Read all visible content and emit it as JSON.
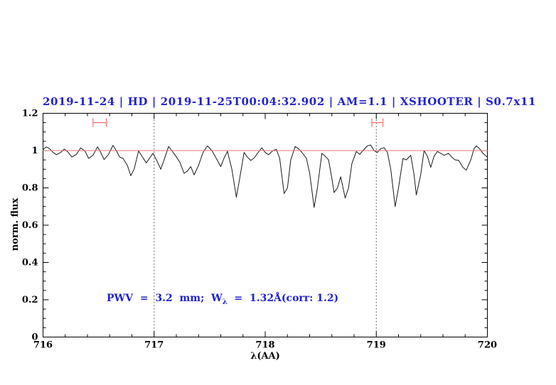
{
  "title": {
    "text": "2019-11-24 | HD | 2019-11-25T00:04:32.902 | AM=1.1 | XSHOOTER | S0.7x11",
    "color": "#2222cc"
  },
  "axes": {
    "xlabel": "λ(AA)",
    "ylabel": "norm. flux",
    "x_tick_labels": [
      "716",
      "717",
      "718",
      "719",
      "720"
    ],
    "y_tick_labels": [
      "0",
      "0.2",
      "0.4",
      "0.6",
      "0.8",
      "1",
      "1.2"
    ]
  },
  "annotation": {
    "prefix": "PWV  =  3.2  mm;  W",
    "sub": "λ",
    "suffix": "  =  1.32Å(corr: 1.2)",
    "color": "#2222cc"
  },
  "chart_data": {
    "type": "line",
    "title": "2019-11-24 | HD | 2019-11-25T00:04:32.902 | AM=1.1 | XSHOOTER | S0.7x11",
    "xlabel": "λ(AA)",
    "ylabel": "norm. flux",
    "xlim": [
      716,
      720
    ],
    "ylim": [
      0,
      1.2
    ],
    "x_major_ticks": [
      716,
      717,
      718,
      719,
      720
    ],
    "y_major_ticks": [
      0,
      0.2,
      0.4,
      0.6,
      0.8,
      1.0,
      1.2
    ],
    "x_minor_step": 0.2,
    "y_minor_step": 0.05,
    "grid": false,
    "frame_color": "#000000",
    "series": [
      {
        "name": "observed-telluric-spectrum",
        "color": "#1a1a1a",
        "x": [
          716.0,
          716.03,
          716.06,
          716.09,
          716.12,
          716.16,
          716.19,
          716.22,
          716.26,
          716.3,
          716.34,
          716.38,
          716.41,
          716.45,
          716.49,
          716.52,
          716.55,
          716.59,
          716.63,
          716.66,
          716.69,
          716.72,
          716.76,
          716.79,
          716.82,
          716.86,
          716.89,
          716.93,
          716.96,
          716.99,
          717.03,
          717.06,
          717.09,
          717.13,
          717.16,
          717.19,
          717.23,
          717.27,
          717.3,
          717.33,
          717.36,
          717.4,
          717.44,
          717.48,
          717.52,
          717.56,
          717.6,
          717.63,
          717.66,
          717.7,
          717.74,
          717.77,
          717.81,
          717.84,
          717.87,
          717.9,
          717.93,
          717.97,
          718.0,
          718.03,
          718.07,
          718.1,
          718.13,
          718.17,
          718.2,
          718.23,
          718.27,
          718.3,
          718.33,
          718.37,
          718.4,
          718.44,
          718.47,
          718.51,
          718.54,
          718.57,
          718.6,
          718.62,
          718.65,
          718.68,
          718.72,
          718.75,
          718.78,
          718.82,
          718.85,
          718.88,
          718.92,
          718.95,
          718.98,
          719.01,
          719.04,
          719.07,
          719.1,
          719.13,
          719.17,
          719.2,
          719.24,
          719.27,
          719.31,
          719.34,
          719.36,
          719.4,
          719.43,
          719.46,
          719.49,
          719.52,
          719.55,
          719.58,
          719.61,
          719.65,
          719.68,
          719.71,
          719.74,
          719.78,
          719.81,
          719.85,
          719.88,
          719.9,
          719.93,
          719.96,
          720.0
        ],
        "y": [
          1.005,
          1.02,
          1.01,
          0.99,
          0.978,
          0.99,
          1.008,
          0.995,
          0.966,
          0.98,
          1.015,
          0.995,
          0.958,
          0.975,
          1.02,
          0.99,
          0.952,
          0.98,
          1.028,
          1.0,
          0.965,
          0.958,
          0.92,
          0.865,
          0.9,
          0.998,
          0.97,
          0.934,
          0.96,
          0.985,
          0.94,
          0.9,
          0.95,
          1.022,
          1.0,
          0.975,
          0.94,
          0.878,
          0.89,
          0.914,
          0.87,
          0.92,
          0.99,
          1.025,
          1.0,
          0.958,
          0.914,
          0.96,
          0.996,
          0.9,
          0.75,
          0.85,
          0.99,
          0.965,
          0.947,
          0.96,
          0.985,
          1.015,
          0.99,
          0.978,
          1.0,
          1.007,
          0.96,
          0.77,
          0.8,
          0.95,
          1.022,
          1.01,
          0.99,
          0.96,
          0.88,
          0.695,
          0.8,
          0.985,
          0.97,
          0.95,
          0.85,
          0.775,
          0.8,
          0.86,
          0.745,
          0.8,
          0.93,
          0.995,
          0.98,
          1.0,
          1.025,
          1.03,
          1.0,
          0.99,
          1.01,
          1.016,
          0.99,
          0.9,
          0.7,
          0.8,
          0.958,
          0.95,
          0.975,
          0.87,
          0.762,
          0.87,
          1.0,
          0.97,
          0.91,
          0.97,
          0.995,
          0.985,
          0.975,
          0.985,
          0.965,
          0.95,
          0.948,
          0.91,
          0.895,
          0.95,
          1.01,
          1.025,
          1.01,
          0.985,
          0.965
        ]
      },
      {
        "name": "continuum-line",
        "color": "#ee7070",
        "x": [
          716,
          720
        ],
        "y": [
          1.0,
          1.0
        ]
      }
    ],
    "vlines": [
      {
        "x": 717,
        "style": "dotted",
        "color": "#444444"
      },
      {
        "x": 719,
        "style": "dotted",
        "color": "#444444"
      }
    ],
    "range_markers": [
      {
        "x_start": 716.45,
        "x_end": 716.57,
        "y": 1.15,
        "color": "#ee7070"
      },
      {
        "x_start": 718.96,
        "x_end": 719.06,
        "y": 1.15,
        "color": "#ee7070"
      }
    ],
    "annotation": {
      "text": "PWV = 3.2 mm; W_λ = 1.32Å(corr: 1.2)",
      "x": 716.58,
      "y": 0.2,
      "color": "#2222cc"
    }
  }
}
